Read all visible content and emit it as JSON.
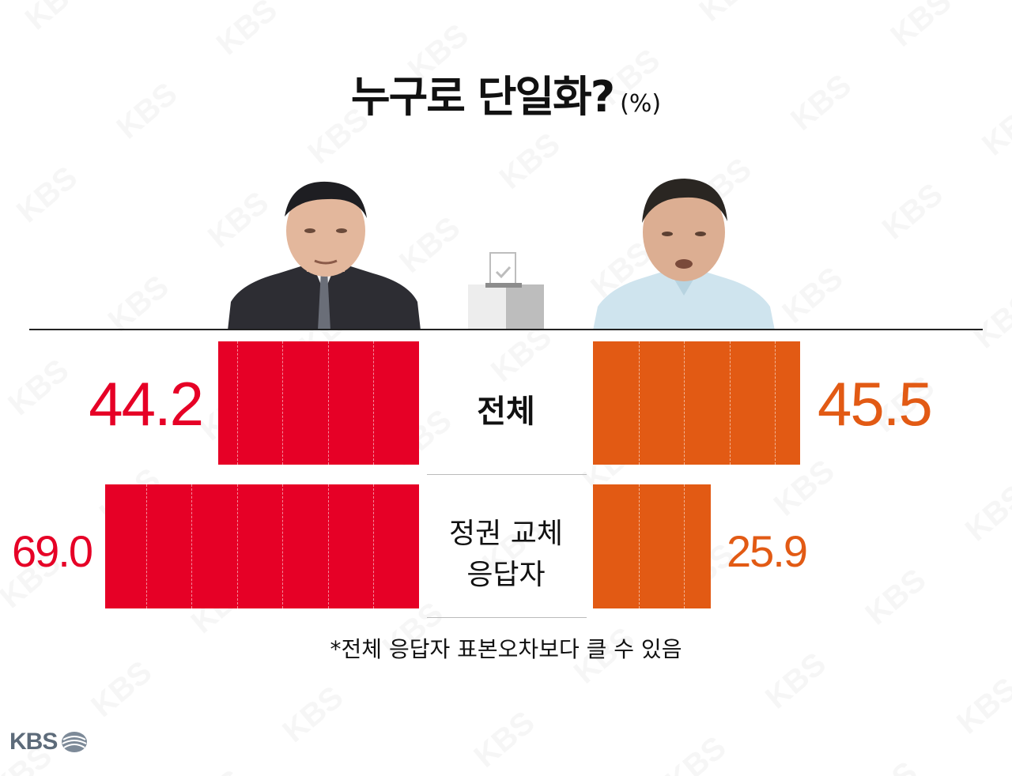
{
  "title": "누구로 단일화?",
  "unit": "(%)",
  "footnote": "*전체 응답자 표본오차보다 클 수 있음",
  "logo_text": "KBS",
  "colors": {
    "left": "#e60026",
    "right": "#e25a14"
  },
  "chart_data": {
    "type": "bar",
    "orientation": "horizontal-diverging",
    "categories": [
      "전체",
      "정권 교체 응답자"
    ],
    "category_lines": [
      [
        "전체"
      ],
      [
        "정권 교체",
        "응답자"
      ]
    ],
    "series": [
      {
        "values": [
          44.2,
          69.0
        ],
        "labels": [
          "44.2",
          "69.0"
        ],
        "color": "#e60026",
        "side": "left"
      },
      {
        "values": [
          45.5,
          25.9
        ],
        "labels": [
          "45.5",
          "25.9"
        ],
        "color": "#e25a14",
        "side": "right"
      }
    ],
    "gridlines": [
      10,
      20,
      30,
      40,
      50,
      60
    ],
    "xlim": [
      0,
      69
    ]
  }
}
